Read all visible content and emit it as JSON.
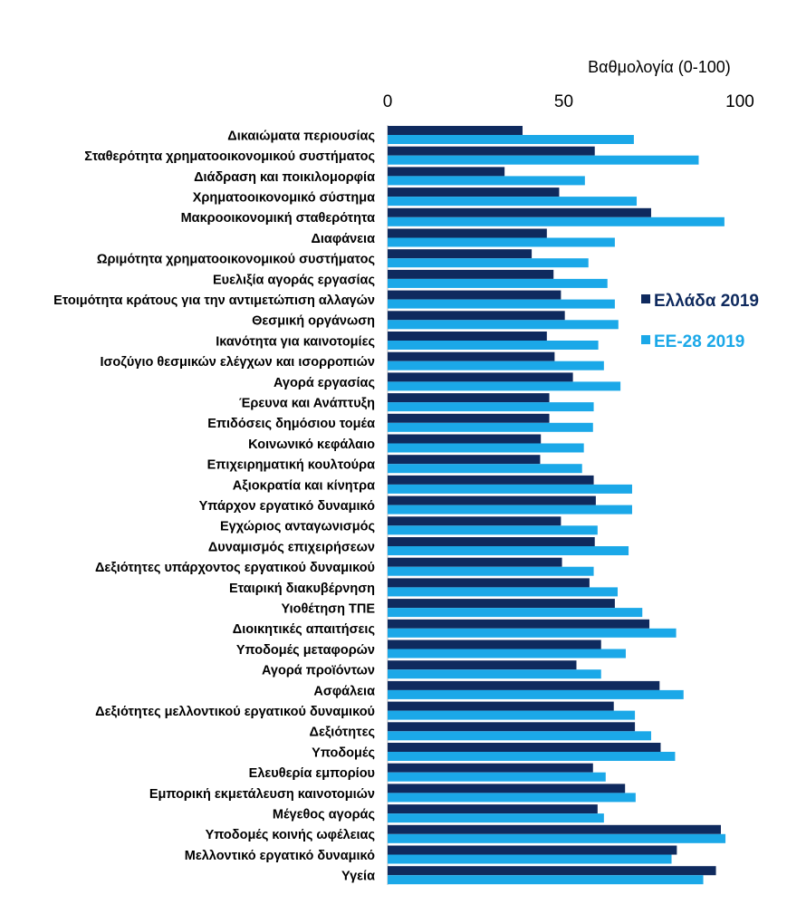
{
  "chart_data": {
    "type": "bar",
    "orientation": "horizontal",
    "axis_title": "Βαθμολογία (0-100)",
    "xlim": [
      0,
      100
    ],
    "x_ticks": [
      0,
      50,
      100
    ],
    "legend_position": "right",
    "categories": [
      "Δικαιώματα περιουσίας",
      "Σταθερότητα χρηματοοικονομικού συστήματος",
      "Διάδραση και ποικιλομορφία",
      "Χρηματοοικονομικό σύστημα",
      "Μακροοικονομική σταθερότητα",
      "Διαφάνεια",
      "Ωριμότητα χρηματοοικονομικού συστήματος",
      "Ευελιξία αγοράς εργασίας",
      "Ετοιμότητα κράτους για την αντιμετώπιση αλλαγών",
      "Θεσμική οργάνωση",
      "Ικανότητα για καινοτομίες",
      "Ισοζύγιο θεσμικών ελέγχων και ισορροπιών",
      "Αγορά εργασίας",
      "Έρευνα και Ανάπτυξη",
      "Επιδόσεις δημόσιου τομέα",
      "Κοινωνικό κεφάλαιο",
      "Επιχειρηματική κουλτούρα",
      "Αξιοκρατία και κίνητρα",
      "Υπάρχον εργατικό δυναμικό",
      "Εγχώριος ανταγωνισμός",
      "Δυναμισμός επιχειρήσεων",
      "Δεξιότητες υπάρχοντος εργατικού δυναμικού",
      "Εταιρική διακυβέρνηση",
      "Υιοθέτηση ΤΠΕ",
      "Διοικητικές απαιτήσεις",
      "Υποδομές μεταφορών",
      "Αγορά προϊόντων",
      "Ασφάλεια",
      "Δεξιότητες μελλοντικού εργατικού δυναμικού",
      "Δεξιότητες",
      "Υποδομές",
      "Ελευθερία εμπορίου",
      "Εμπορική εκμετάλευση καινοτομιών",
      "Μέγεθος αγοράς",
      "Υποδομές κοινής ωφέλειας",
      "Μελλοντικό εργατικό δυναμικό",
      "Υγεία"
    ],
    "series": [
      {
        "name": "Ελλάδα 2019",
        "color": "#0f2a5e",
        "values": [
          38.3,
          58.8,
          33.2,
          48.7,
          74.8,
          45.2,
          40.9,
          47.1,
          49.2,
          50.3,
          45.2,
          47.4,
          52.6,
          45.9,
          45.9,
          43.5,
          43.3,
          58.5,
          59.1,
          49.2,
          58.8,
          49.5,
          57.3,
          64.5,
          74.3,
          60.6,
          53.6,
          77.2,
          64.2,
          70.2,
          77.5,
          58.3,
          67.4,
          59.6,
          94.6,
          82.1,
          93.2
        ]
      },
      {
        "name": "ΕΕ-28 2019",
        "color": "#1ba8e8",
        "values": [
          69.9,
          88.3,
          56.0,
          70.7,
          95.6,
          64.5,
          57.0,
          62.4,
          64.5,
          65.5,
          59.8,
          61.4,
          66.1,
          58.5,
          58.3,
          55.7,
          55.2,
          69.4,
          69.4,
          59.6,
          68.4,
          58.5,
          65.3,
          72.3,
          81.9,
          67.6,
          60.6,
          84.0,
          70.2,
          74.8,
          81.6,
          61.9,
          70.4,
          61.4,
          95.9,
          80.6,
          89.6
        ]
      }
    ]
  }
}
